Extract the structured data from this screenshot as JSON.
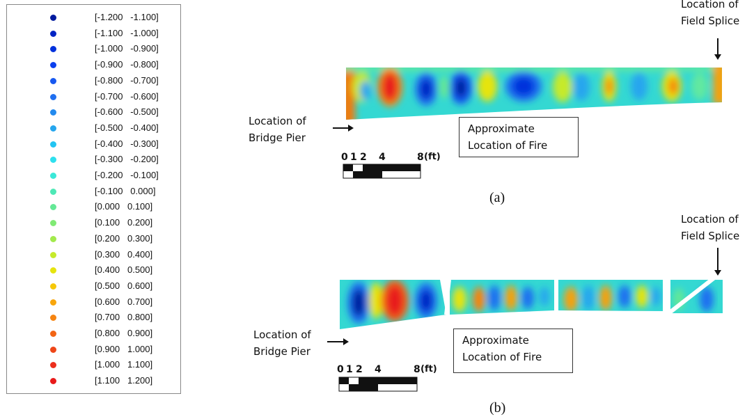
{
  "legend": {
    "items": [
      {
        "range": "[-1.200   -1.100]",
        "color": "#001a9e"
      },
      {
        "range": "[-1.100   -1.000]",
        "color": "#0024c4"
      },
      {
        "range": "[-1.000   -0.900]",
        "color": "#0030dc"
      },
      {
        "range": "[-0.900   -0.800]",
        "color": "#0a40ee"
      },
      {
        "range": "[-0.800   -0.700]",
        "color": "#1758f0"
      },
      {
        "range": "[-0.700   -0.600]",
        "color": "#1f6ff0"
      },
      {
        "range": "[-0.600   -0.500]",
        "color": "#238aee"
      },
      {
        "range": "[-0.500   -0.400]",
        "color": "#25a6ee"
      },
      {
        "range": "[-0.400   -0.300]",
        "color": "#22c4f2"
      },
      {
        "range": "[-0.300   -0.200]",
        "color": "#2ee0ee"
      },
      {
        "range": "[-0.200   -0.100]",
        "color": "#3ae8d8"
      },
      {
        "range": "[-0.100   0.000]",
        "color": "#4ee8b6"
      },
      {
        "range": "[0.000   0.100]",
        "color": "#64e896"
      },
      {
        "range": "[0.100   0.200]",
        "color": "#80ea74"
      },
      {
        "range": "[0.200   0.300]",
        "color": "#a2ea4c"
      },
      {
        "range": "[0.300   0.400]",
        "color": "#c6ea2a"
      },
      {
        "range": "[0.400   0.500]",
        "color": "#e6e40e"
      },
      {
        "range": "[0.500   0.600]",
        "color": "#f6c808"
      },
      {
        "range": "[0.600   0.700]",
        "color": "#f8a60c"
      },
      {
        "range": "[0.700   0.800]",
        "color": "#f68410"
      },
      {
        "range": "[0.800   0.900]",
        "color": "#f26414"
      },
      {
        "range": "[0.900   1.000]",
        "color": "#ee4618"
      },
      {
        "range": "[1.000   1.100]",
        "color": "#ec2e1c"
      },
      {
        "range": "[1.100   1.200]",
        "color": "#e81a1a"
      }
    ]
  },
  "panel_a": {
    "field_splice_line1": "Location of",
    "field_splice_line2": "Field Splice",
    "pier_line1": "Location of",
    "pier_line2": "Bridge Pier",
    "fire_line1": "Approximate",
    "fire_line2": "Location of Fire",
    "scale_ticks": [
      "0",
      "1",
      "2",
      "4",
      "8"
    ],
    "scale_unit": "(ft)",
    "caption": "(a)"
  },
  "panel_b": {
    "field_splice_line1": "Location of",
    "field_splice_line2": "Field Splice",
    "pier_line1": "Location of",
    "pier_line2": "Bridge Pier",
    "fire_line1": "Approximate",
    "fire_line2": "Location of Fire",
    "scale_ticks": [
      "0",
      "1",
      "2",
      "4",
      "8"
    ],
    "scale_unit": "(ft)",
    "caption": "(b)"
  }
}
